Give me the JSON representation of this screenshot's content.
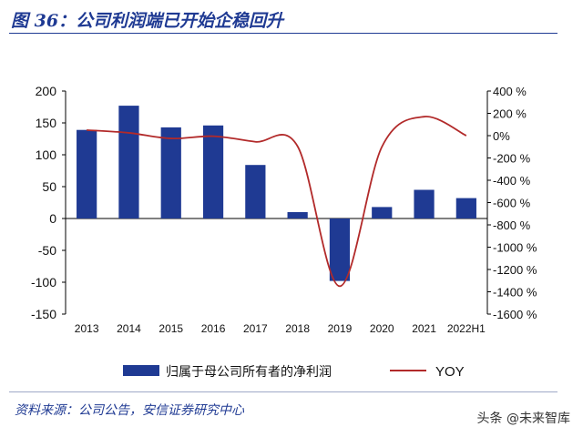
{
  "header": {
    "title": "图 36：公司利润端已开始企稳回升"
  },
  "footer": {
    "source": "资料来源：公司公告，安信证券研究中心",
    "watermark": "头条 @未来智库"
  },
  "colors": {
    "bar": "#1f3a93",
    "line": "#b22a2a",
    "title": "#1f3a93"
  },
  "chart_data": {
    "type": "bar",
    "categories": [
      "2013",
      "2014",
      "2015",
      "2016",
      "2017",
      "2018",
      "2019",
      "2020",
      "2021",
      "2022H1"
    ],
    "y_left": {
      "ticks": [
        "200",
        "150",
        "100",
        "50",
        "0",
        "-50",
        "-100",
        "-150"
      ],
      "range": [
        -150,
        200
      ]
    },
    "y_right": {
      "ticks": [
        "400 %",
        "200 %",
        "0%",
        "-200 %",
        "-400 %",
        "-600 %",
        "-800 %",
        "-1000 %",
        "-1200 %",
        "-1400 %",
        "-1600 %"
      ],
      "range": [
        -1600,
        400
      ]
    },
    "series": [
      {
        "name": "归属于母公司所有者的净利润",
        "type": "bar",
        "axis": "left",
        "values": [
          139,
          177,
          143,
          146,
          84,
          10,
          -98,
          18,
          45,
          32
        ]
      },
      {
        "name": "YOY",
        "type": "line",
        "axis": "right",
        "values": [
          50,
          25,
          -25,
          -5,
          -55,
          -95,
          -1350,
          -100,
          170,
          0
        ]
      }
    ],
    "legend": {
      "position": "bottom",
      "bar_label": "归属于母公司所有者的净利润",
      "line_label": "YOY"
    }
  }
}
